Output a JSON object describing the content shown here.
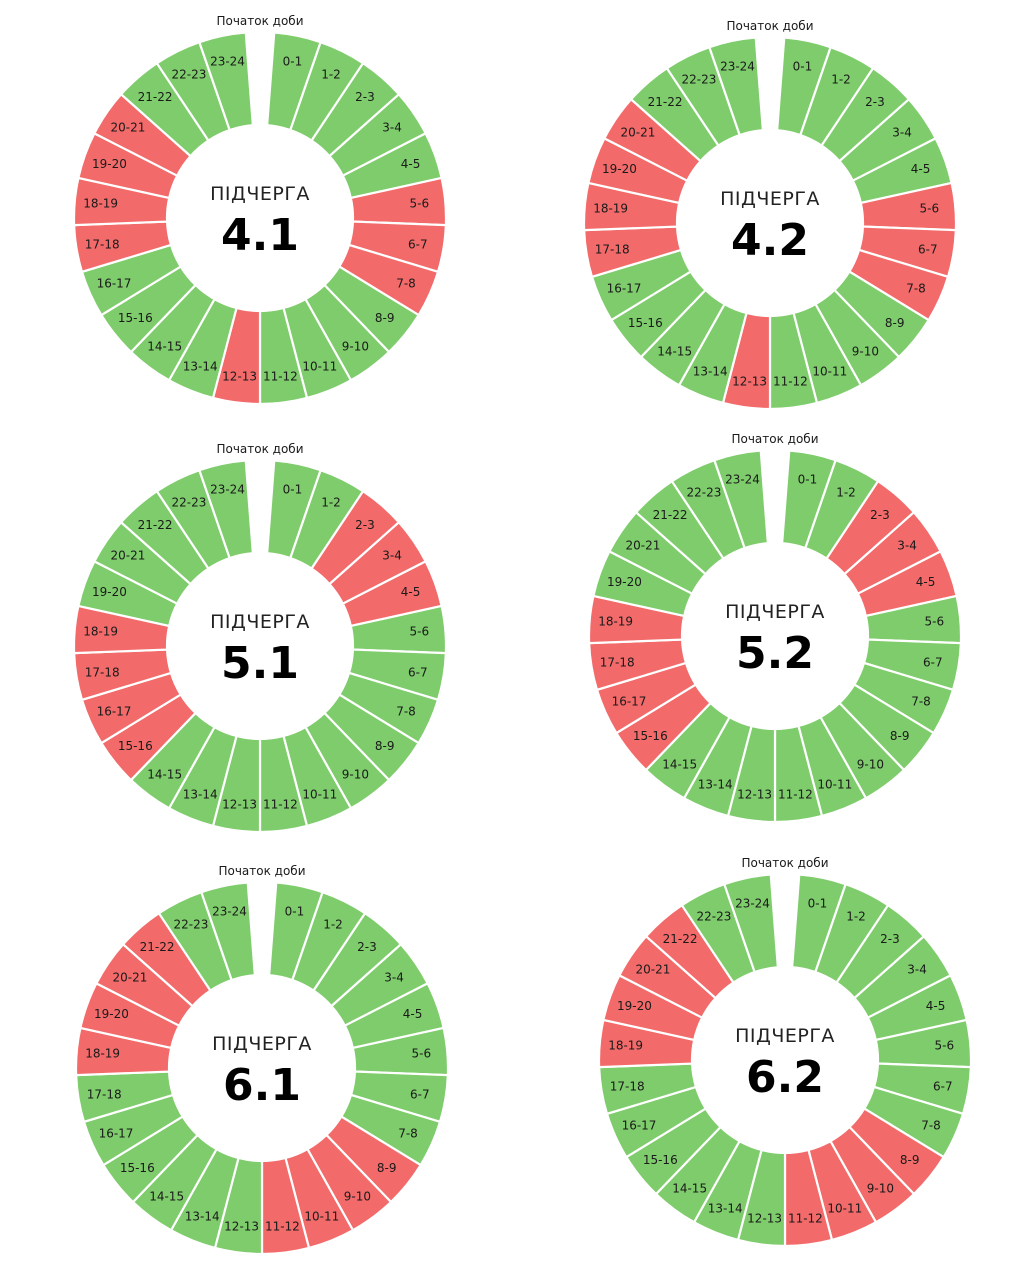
{
  "colors": {
    "off": "#F26A6A",
    "on": "#7ECC6B",
    "separator": "#ffffff"
  },
  "chart_data": [
    {
      "type": "donut",
      "start_label": "Початок доби",
      "title": "ПІДЧЕРГА",
      "number": "4.1",
      "segments": [
        "0-1",
        "1-2",
        "2-3",
        "3-4",
        "4-5",
        "5-6",
        "6-7",
        "7-8",
        "8-9",
        "9-10",
        "10-11",
        "11-12",
        "12-13",
        "13-14",
        "14-15",
        "15-16",
        "16-17",
        "17-18",
        "18-19",
        "19-20",
        "20-21",
        "21-22",
        "22-23",
        "23-24"
      ],
      "status": [
        "on",
        "on",
        "on",
        "on",
        "on",
        "off",
        "off",
        "off",
        "on",
        "on",
        "on",
        "on",
        "off",
        "on",
        "on",
        "on",
        "on",
        "off",
        "off",
        "off",
        "off",
        "on",
        "on",
        "on"
      ]
    },
    {
      "type": "donut",
      "start_label": "Початок доби",
      "title": "ПІДЧЕРГА",
      "number": "4.2",
      "segments": [
        "0-1",
        "1-2",
        "2-3",
        "3-4",
        "4-5",
        "5-6",
        "6-7",
        "7-8",
        "8-9",
        "9-10",
        "10-11",
        "11-12",
        "12-13",
        "13-14",
        "14-15",
        "15-16",
        "16-17",
        "17-18",
        "18-19",
        "19-20",
        "20-21",
        "21-22",
        "22-23",
        "23-24"
      ],
      "status": [
        "on",
        "on",
        "on",
        "on",
        "on",
        "off",
        "off",
        "off",
        "on",
        "on",
        "on",
        "on",
        "off",
        "on",
        "on",
        "on",
        "on",
        "off",
        "off",
        "off",
        "off",
        "on",
        "on",
        "on"
      ]
    },
    {
      "type": "donut",
      "start_label": "Початок доби",
      "title": "ПІДЧЕРГА",
      "number": "5.1",
      "segments": [
        "0-1",
        "1-2",
        "2-3",
        "3-4",
        "4-5",
        "5-6",
        "6-7",
        "7-8",
        "8-9",
        "9-10",
        "10-11",
        "11-12",
        "12-13",
        "13-14",
        "14-15",
        "15-16",
        "16-17",
        "17-18",
        "18-19",
        "19-20",
        "20-21",
        "21-22",
        "22-23",
        "23-24"
      ],
      "status": [
        "on",
        "on",
        "off",
        "off",
        "off",
        "on",
        "on",
        "on",
        "on",
        "on",
        "on",
        "on",
        "on",
        "on",
        "on",
        "off",
        "off",
        "off",
        "off",
        "on",
        "on",
        "on",
        "on",
        "on"
      ]
    },
    {
      "type": "donut",
      "start_label": "Початок доби",
      "title": "ПІДЧЕРГА",
      "number": "5.2",
      "segments": [
        "0-1",
        "1-2",
        "2-3",
        "3-4",
        "4-5",
        "5-6",
        "6-7",
        "7-8",
        "8-9",
        "9-10",
        "10-11",
        "11-12",
        "12-13",
        "13-14",
        "14-15",
        "15-16",
        "16-17",
        "17-18",
        "18-19",
        "19-20",
        "20-21",
        "21-22",
        "22-23",
        "23-24"
      ],
      "status": [
        "on",
        "on",
        "off",
        "off",
        "off",
        "on",
        "on",
        "on",
        "on",
        "on",
        "on",
        "on",
        "on",
        "on",
        "on",
        "off",
        "off",
        "off",
        "off",
        "on",
        "on",
        "on",
        "on",
        "on"
      ]
    },
    {
      "type": "donut",
      "start_label": "Початок доби",
      "title": "ПІДЧЕРГА",
      "number": "6.1",
      "segments": [
        "0-1",
        "1-2",
        "2-3",
        "3-4",
        "4-5",
        "5-6",
        "6-7",
        "7-8",
        "8-9",
        "9-10",
        "10-11",
        "11-12",
        "12-13",
        "13-14",
        "14-15",
        "15-16",
        "16-17",
        "17-18",
        "18-19",
        "19-20",
        "20-21",
        "21-22",
        "22-23",
        "23-24"
      ],
      "status": [
        "on",
        "on",
        "on",
        "on",
        "on",
        "on",
        "on",
        "on",
        "off",
        "off",
        "off",
        "off",
        "on",
        "on",
        "on",
        "on",
        "on",
        "on",
        "off",
        "off",
        "off",
        "off",
        "on",
        "on"
      ]
    },
    {
      "type": "donut",
      "start_label": "Початок доби",
      "title": "ПІДЧЕРГА",
      "number": "6.2",
      "segments": [
        "0-1",
        "1-2",
        "2-3",
        "3-4",
        "4-5",
        "5-6",
        "6-7",
        "7-8",
        "8-9",
        "9-10",
        "10-11",
        "11-12",
        "12-13",
        "13-14",
        "14-15",
        "15-16",
        "16-17",
        "17-18",
        "18-19",
        "19-20",
        "20-21",
        "21-22",
        "22-23",
        "23-24"
      ],
      "status": [
        "on",
        "on",
        "on",
        "on",
        "on",
        "on",
        "on",
        "on",
        "off",
        "off",
        "off",
        "off",
        "on",
        "on",
        "on",
        "on",
        "on",
        "on",
        "off",
        "off",
        "off",
        "off",
        "on",
        "on"
      ]
    }
  ]
}
